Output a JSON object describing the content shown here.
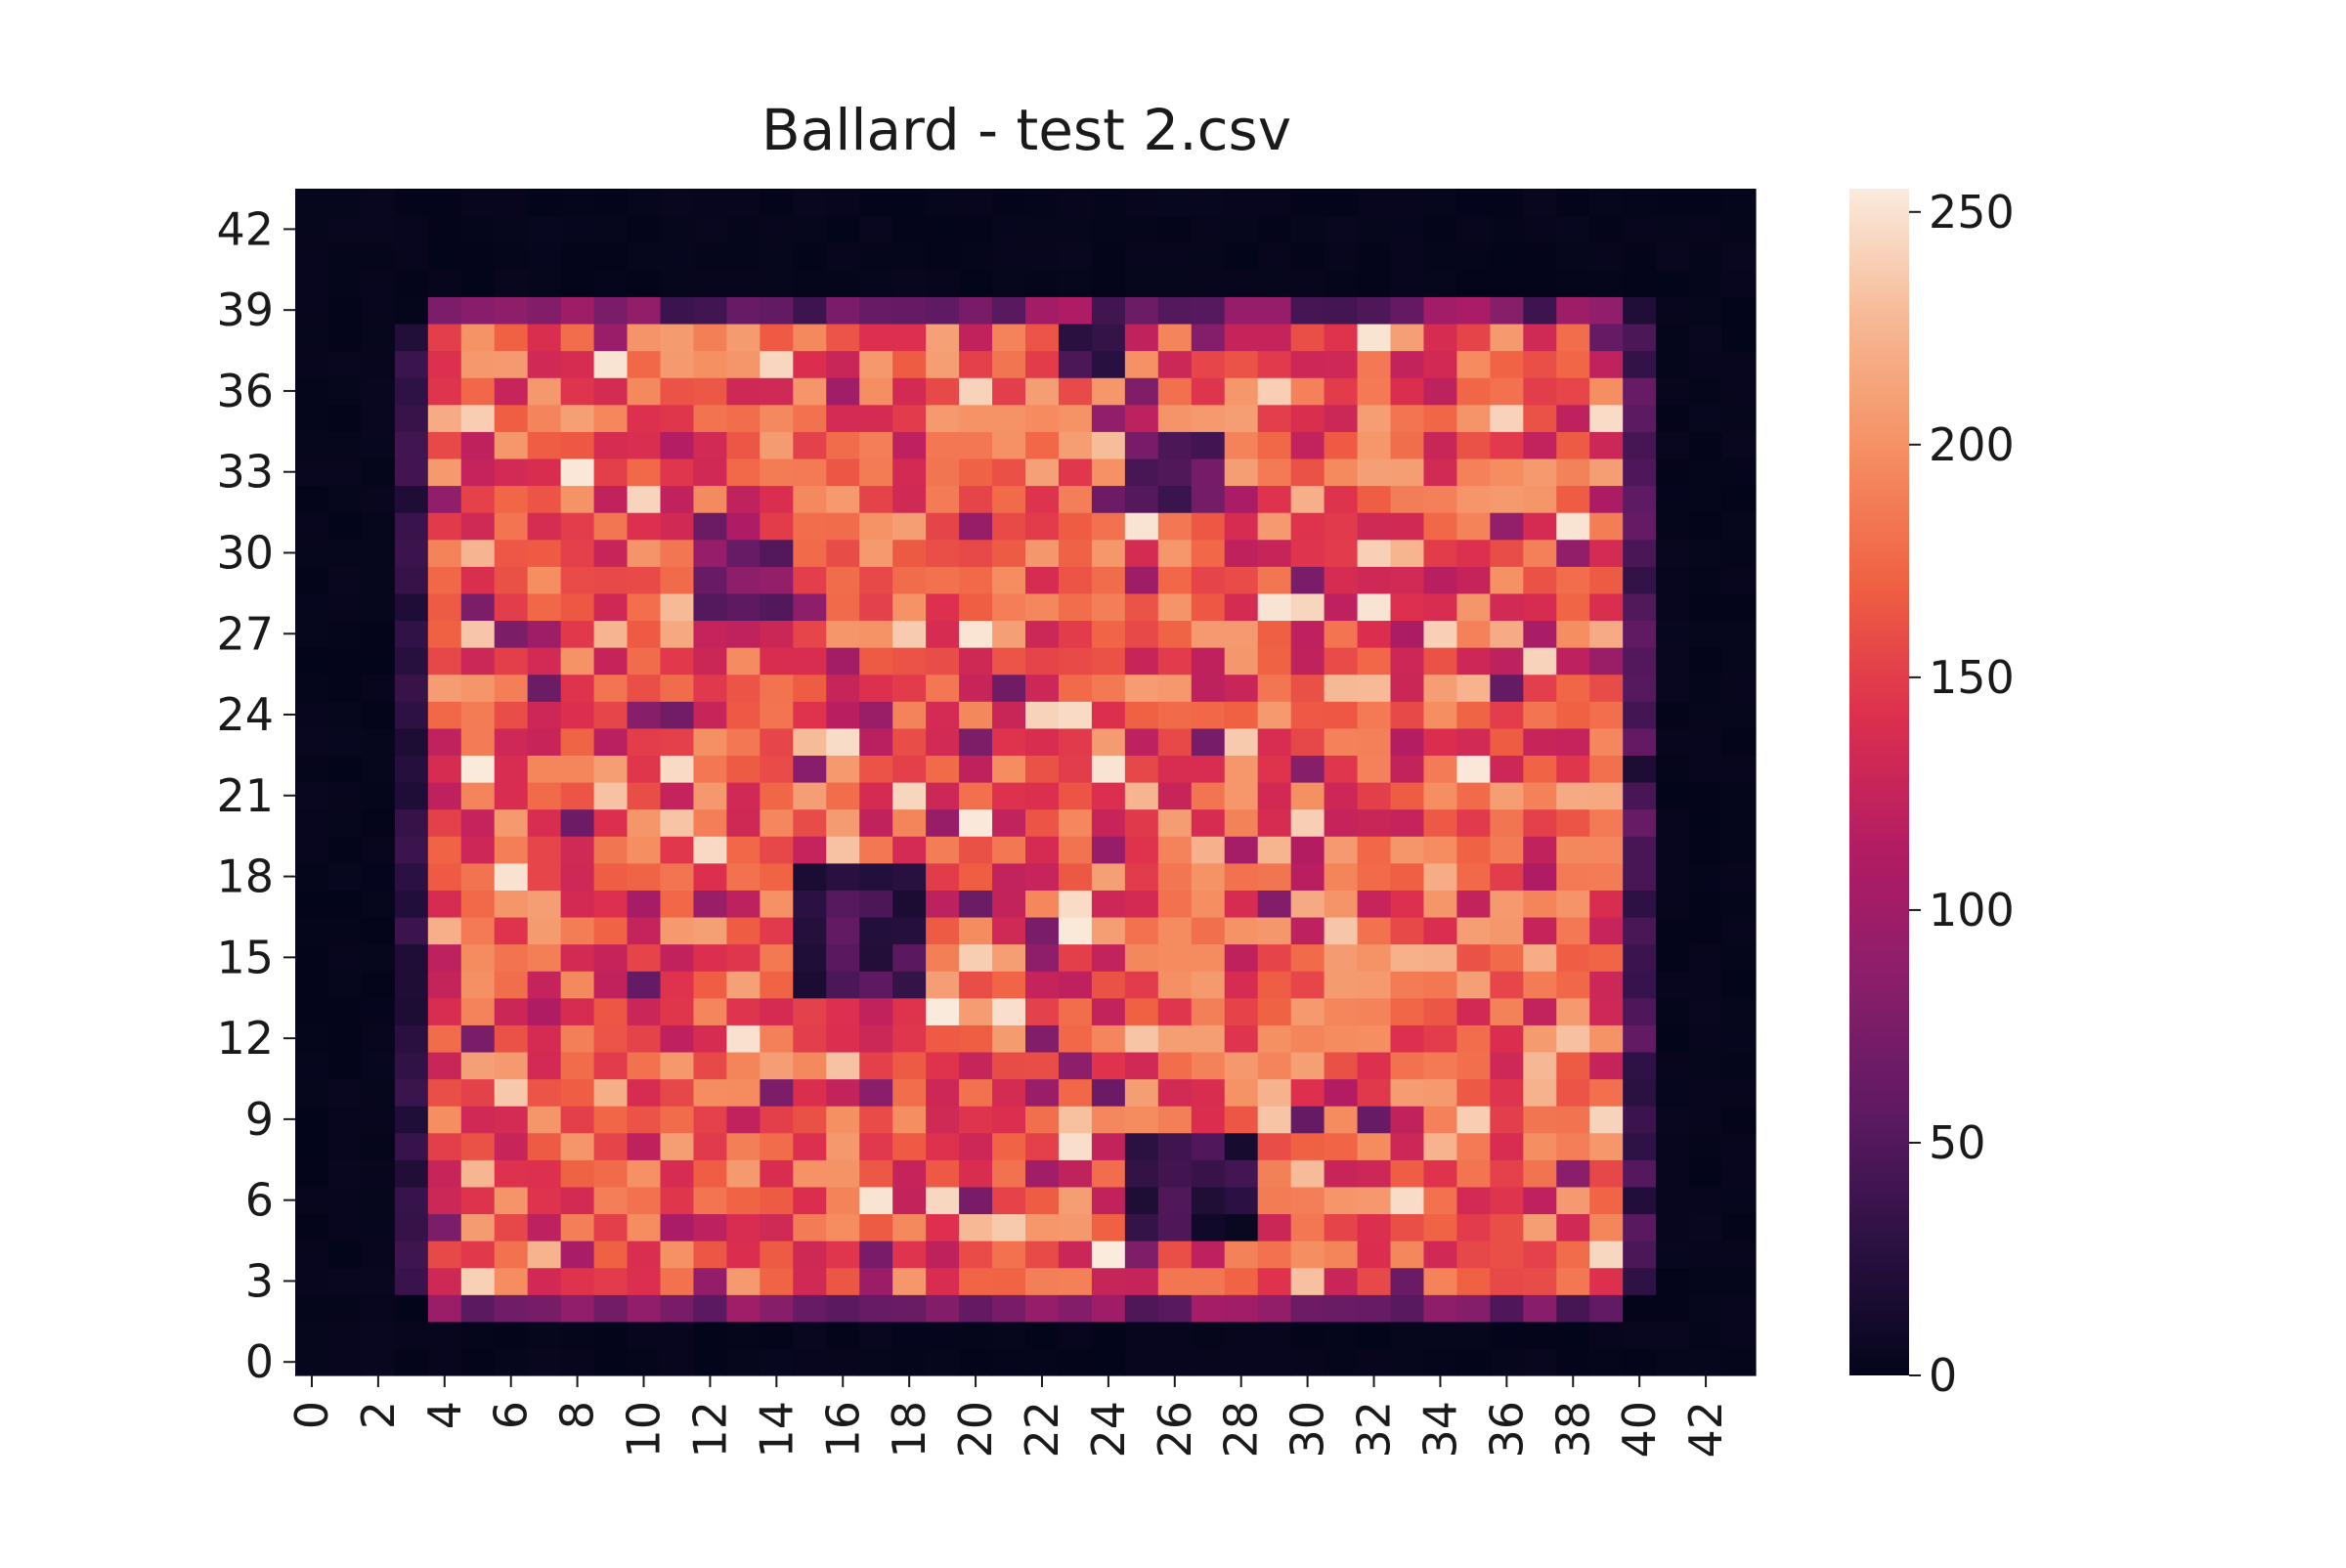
{
  "chart_data": {
    "type": "heatmap",
    "title": "Ballard - test 2.csv",
    "xlabel": "",
    "ylabel": "",
    "grid": false,
    "rows": 44,
    "cols": 44,
    "x_tick_labels": [
      "0",
      "2",
      "4",
      "6",
      "8",
      "10",
      "12",
      "14",
      "16",
      "18",
      "20",
      "22",
      "24",
      "26",
      "28",
      "30",
      "32",
      "34",
      "36",
      "38",
      "40",
      "42"
    ],
    "x_tick_values": [
      0,
      2,
      4,
      6,
      8,
      10,
      12,
      14,
      16,
      18,
      20,
      22,
      24,
      26,
      28,
      30,
      32,
      34,
      36,
      38,
      40,
      42
    ],
    "y_tick_labels": [
      "0",
      "3",
      "6",
      "9",
      "12",
      "15",
      "18",
      "21",
      "24",
      "27",
      "30",
      "33",
      "36",
      "39",
      "42"
    ],
    "y_tick_values": [
      0,
      3,
      6,
      9,
      12,
      15,
      18,
      21,
      24,
      27,
      30,
      33,
      36,
      39,
      42
    ],
    "y_axis_origin": "bottom",
    "colorbar": {
      "vmin": 0,
      "vmax": 255,
      "ticks": [
        0,
        50,
        100,
        150,
        200,
        250
      ],
      "tick_labels": [
        "0",
        "50",
        "100",
        "150",
        "200",
        "250"
      ],
      "colormap": "rocket",
      "colormap_stops": [
        "#03051a",
        "#2b1143",
        "#5e1a62",
        "#8a1e6b",
        "#b31c63",
        "#dd2f4e",
        "#f06043",
        "#f58f62",
        "#f6b894",
        "#faebdd"
      ]
    },
    "data_summary": {
      "matrix_size": [
        44,
        44
      ],
      "background_value": 0,
      "sample_region": {
        "x_range": [
          4,
          39
        ],
        "y_range": [
          2,
          39
        ]
      },
      "sample_value_range": [
        0,
        255
      ],
      "typical_sample_value_range": [
        120,
        210
      ],
      "low_value_areas": [
        {
          "x": [
            15,
            18
          ],
          "y": [
            14,
            18
          ],
          "approx_value": 15
        },
        {
          "x": [
            25,
            28
          ],
          "y": [
            5,
            8
          ],
          "approx_value": 5
        },
        {
          "x": [
            25,
            27
          ],
          "y": [
            32,
            34
          ],
          "approx_value": 35
        },
        {
          "x": [
            12,
            14
          ],
          "y": [
            28,
            30
          ],
          "approx_value": 50
        },
        {
          "x": [
            23,
            24
          ],
          "y": [
            37,
            39
          ],
          "approx_value": 20
        }
      ],
      "edge_values": {
        "left_inner_column_x3": 30,
        "bottom_row_y2": 70,
        "top_row_y39": 55,
        "right_column_x40": 45
      }
    }
  }
}
